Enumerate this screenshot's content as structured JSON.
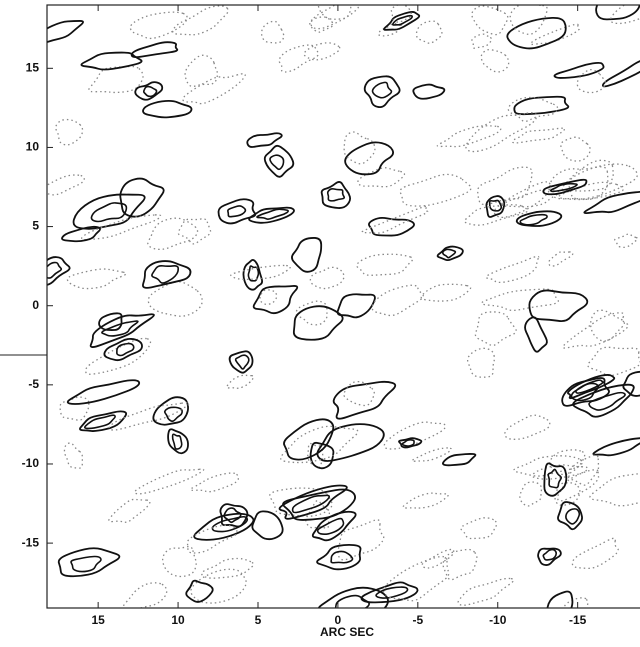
{
  "chart_data": {
    "type": "contour",
    "xlabel": "ARC SEC",
    "xlim": [
      18.2,
      -18.9
    ],
    "ylim": [
      -19.1,
      19
    ],
    "xticks": [
      15,
      10,
      5,
      0,
      -5,
      -10,
      -15
    ],
    "yticks": [
      15,
      10,
      5,
      0,
      -5,
      -10,
      -15
    ]
  }
}
